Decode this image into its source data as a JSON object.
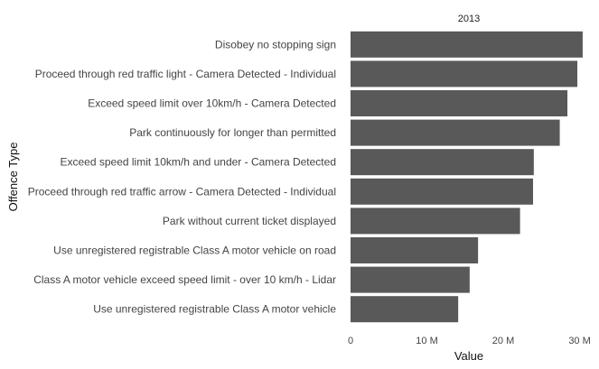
{
  "chart_data": {
    "type": "bar",
    "orientation": "horizontal",
    "facet_label": "2013",
    "xlabel": "Value",
    "ylabel": "Offence Type",
    "xlim": [
      0,
      31000000
    ],
    "x_ticks": [
      0,
      10000000,
      20000000,
      30000000
    ],
    "x_tick_labels": [
      "0",
      "10 M",
      "20 M",
      "30 M"
    ],
    "grid": false,
    "bar_color": "#595959",
    "categories": [
      "Disobey no stopping sign",
      "Proceed through red traffic light - Camera Detected - Individual",
      "Exceed speed limit over 10km/h - Camera Detected",
      "Park continuously for longer than permitted",
      "Exceed speed limit 10km/h and under - Camera Detected",
      "Proceed through red traffic arrow - Camera Detected - Individual",
      "Park without current ticket displayed",
      "Use unregistered registrable Class A motor vehicle on road",
      "Class A motor vehicle exceed speed limit - over 10 km/h - Lidar",
      "Use unregistered registrable Class A motor vehicle"
    ],
    "values": [
      30400000,
      29700000,
      28400000,
      27400000,
      24000000,
      23900000,
      22200000,
      16700000,
      15600000,
      14100000
    ]
  }
}
